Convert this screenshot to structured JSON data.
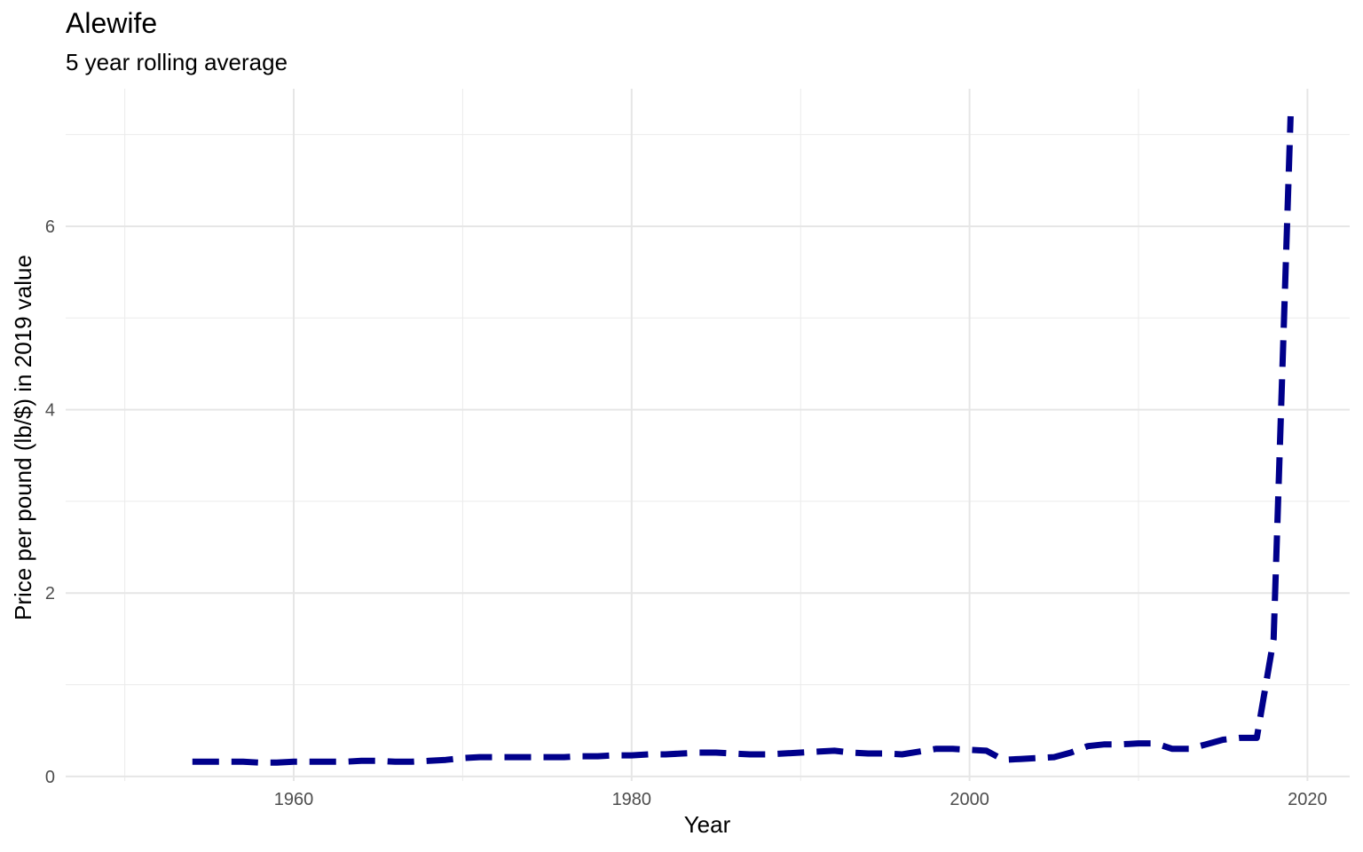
{
  "chart_data": {
    "type": "line",
    "title": "Alewife",
    "subtitle": "5 year rolling average",
    "xlabel": "Year",
    "ylabel": "Price per pound (lb/$) in 2019 value",
    "xlim": [
      1946.5,
      2022.5
    ],
    "ylim": [
      -0.05,
      7.5
    ],
    "x_ticks": [
      1960,
      1980,
      2000,
      2020
    ],
    "y_ticks": [
      0,
      2,
      4,
      6
    ],
    "grid": true,
    "line_color": "#00008B",
    "line_style": "dashed",
    "x": [
      1954,
      1955,
      1956,
      1957,
      1958,
      1959,
      1960,
      1961,
      1962,
      1963,
      1964,
      1965,
      1966,
      1967,
      1968,
      1969,
      1970,
      1971,
      1972,
      1973,
      1974,
      1975,
      1976,
      1977,
      1978,
      1979,
      1980,
      1981,
      1982,
      1983,
      1984,
      1985,
      1986,
      1987,
      1988,
      1989,
      1990,
      1991,
      1992,
      1993,
      1994,
      1995,
      1996,
      1997,
      1998,
      1999,
      2000,
      2001,
      2002,
      2003,
      2004,
      2005,
      2006,
      2007,
      2008,
      2009,
      2010,
      2011,
      2012,
      2013,
      2014,
      2015,
      2016,
      2017,
      2018,
      2019
    ],
    "y": [
      0.16,
      0.16,
      0.16,
      0.16,
      0.15,
      0.15,
      0.16,
      0.16,
      0.16,
      0.16,
      0.17,
      0.17,
      0.16,
      0.16,
      0.17,
      0.18,
      0.2,
      0.21,
      0.21,
      0.21,
      0.21,
      0.21,
      0.21,
      0.22,
      0.22,
      0.23,
      0.23,
      0.24,
      0.24,
      0.25,
      0.26,
      0.26,
      0.25,
      0.24,
      0.24,
      0.25,
      0.26,
      0.27,
      0.28,
      0.26,
      0.25,
      0.25,
      0.24,
      0.27,
      0.3,
      0.3,
      0.29,
      0.28,
      0.18,
      0.19,
      0.2,
      0.21,
      0.26,
      0.33,
      0.35,
      0.35,
      0.36,
      0.36,
      0.3,
      0.3,
      0.35,
      0.4,
      0.42,
      0.42,
      1.5,
      7.2
    ]
  }
}
